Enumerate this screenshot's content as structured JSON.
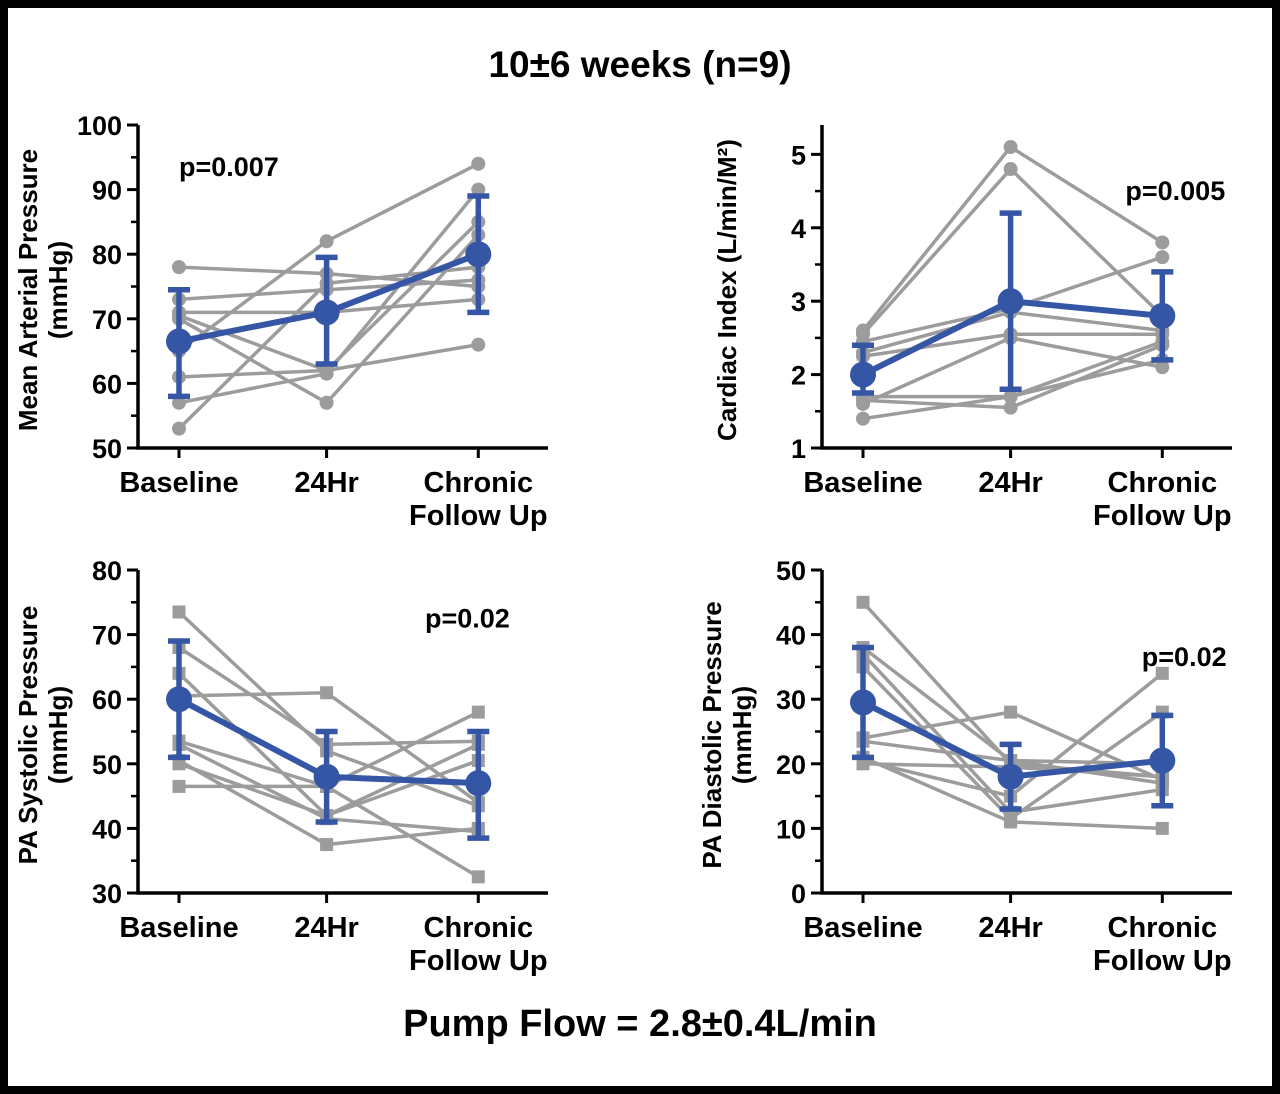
{
  "title": "10±6 weeks (n=9)",
  "caption": "Pump Flow = 2.8±0.4L/min",
  "colors": {
    "mean_line": "#3556A5",
    "individual_line": "#9C9C9C",
    "axis": "#000000",
    "text": "#000000",
    "background": "#FFFFFF"
  },
  "chart_data": [
    {
      "type": "line",
      "name": "mean-arterial-pressure",
      "ylabel_lines": [
        "Mean Arterial Pressure",
        "(mmHg)"
      ],
      "categories": [
        [
          "Baseline"
        ],
        [
          "24Hr"
        ],
        [
          "Chronic",
          "Follow Up"
        ]
      ],
      "p_label": "p=0.007",
      "p_anchor": [
        0.1,
        93.5
      ],
      "ylim": [
        50,
        100
      ],
      "yticks": [
        50,
        60,
        70,
        80,
        90,
        100
      ],
      "marker": "circle",
      "series": [
        {
          "name": "patient-1",
          "values": [
            78,
            77,
            75
          ]
        },
        {
          "name": "patient-2",
          "values": [
            73,
            74.5,
            76
          ]
        },
        {
          "name": "patient-3",
          "values": [
            71,
            71,
            73
          ]
        },
        {
          "name": "patient-4",
          "values": [
            70.5,
            62,
            85
          ]
        },
        {
          "name": "patient-5",
          "values": [
            70,
            57,
            83
          ]
        },
        {
          "name": "patient-6",
          "values": [
            65,
            82,
            94
          ]
        },
        {
          "name": "patient-7",
          "values": [
            61,
            62,
            66
          ]
        },
        {
          "name": "patient-8",
          "values": [
            57,
            61.5,
            90
          ]
        },
        {
          "name": "patient-9",
          "values": [
            53,
            75.5,
            78
          ]
        }
      ],
      "mean": {
        "values": [
          66.5,
          71,
          80
        ],
        "err_low": [
          58,
          63,
          71
        ],
        "err_high": [
          74.5,
          79.5,
          89
        ]
      }
    },
    {
      "type": "line",
      "name": "cardiac-index",
      "ylabel_lines": [
        "Cardiac Index (L/min/M²)"
      ],
      "categories": [
        [
          "Baseline"
        ],
        [
          "24Hr"
        ],
        [
          "Chronic",
          "Follow Up"
        ]
      ],
      "p_label": "p=0.005",
      "p_anchor": [
        0.74,
        4.5
      ],
      "ylim": [
        1,
        5.4
      ],
      "yticks": [
        1,
        2,
        3,
        4,
        5
      ],
      "marker": "circle",
      "series": [
        {
          "name": "patient-1",
          "values": [
            2.6,
            5.1,
            3.8
          ]
        },
        {
          "name": "patient-2",
          "values": [
            2.55,
            4.8,
            2.8
          ]
        },
        {
          "name": "patient-3",
          "values": [
            2.45,
            2.9,
            3.6
          ]
        },
        {
          "name": "patient-4",
          "values": [
            2.3,
            2.85,
            2.6
          ]
        },
        {
          "name": "patient-5",
          "values": [
            2.25,
            2.55,
            2.55
          ]
        },
        {
          "name": "patient-6",
          "values": [
            1.7,
            1.7,
            2.45
          ]
        },
        {
          "name": "patient-7",
          "values": [
            1.65,
            1.55,
            2.4
          ]
        },
        {
          "name": "patient-8",
          "values": [
            1.6,
            2.5,
            2.1
          ]
        },
        {
          "name": "patient-9",
          "values": [
            1.4,
            1.7,
            2.2
          ]
        }
      ],
      "mean": {
        "values": [
          2.0,
          3.0,
          2.8
        ],
        "err_low": [
          1.75,
          1.8,
          2.2
        ],
        "err_high": [
          2.4,
          4.2,
          3.4
        ]
      }
    },
    {
      "type": "line",
      "name": "pa-systolic-pressure",
      "ylabel_lines": [
        "PA Systolic Pressure",
        "(mmHg)"
      ],
      "categories": [
        [
          "Baseline"
        ],
        [
          "24Hr"
        ],
        [
          "Chronic",
          "Follow Up"
        ]
      ],
      "p_label": "p=0.02",
      "p_anchor": [
        0.7,
        72.5
      ],
      "ylim": [
        30,
        80
      ],
      "yticks": [
        30,
        40,
        50,
        60,
        70,
        80
      ],
      "marker": "square",
      "series": [
        {
          "name": "patient-1",
          "values": [
            73.5,
            52,
            43.5
          ]
        },
        {
          "name": "patient-2",
          "values": [
            68,
            53,
            53.5
          ]
        },
        {
          "name": "patient-3",
          "values": [
            64,
            42,
            50.5
          ]
        },
        {
          "name": "patient-4",
          "values": [
            60.5,
            61,
            44
          ]
        },
        {
          "name": "patient-5",
          "values": [
            53.5,
            46.5,
            58
          ]
        },
        {
          "name": "patient-6",
          "values": [
            53,
            41.5,
            39.5
          ]
        },
        {
          "name": "patient-7",
          "values": [
            50.5,
            37.5,
            40
          ]
        },
        {
          "name": "patient-8",
          "values": [
            50,
            42,
            53
          ]
        },
        {
          "name": "patient-9",
          "values": [
            46.5,
            46.5,
            32.5
          ]
        }
      ],
      "mean": {
        "values": [
          60,
          48,
          47
        ],
        "err_low": [
          51,
          41,
          38.5
        ],
        "err_high": [
          69,
          55,
          55
        ]
      }
    },
    {
      "type": "line",
      "name": "pa-diastolic-pressure",
      "ylabel_lines": [
        "PA Diastolic Pressure",
        "(mmHg)"
      ],
      "categories": [
        [
          "Baseline"
        ],
        [
          "24Hr"
        ],
        [
          "Chronic",
          "Follow Up"
        ]
      ],
      "p_label": "p=0.02",
      "p_anchor": [
        0.78,
        36.5
      ],
      "ylim": [
        0,
        50
      ],
      "yticks": [
        0,
        10,
        20,
        30,
        40,
        50
      ],
      "marker": "square",
      "series": [
        {
          "name": "patient-1",
          "values": [
            45,
            20,
            18
          ]
        },
        {
          "name": "patient-2",
          "values": [
            38,
            20.5,
            17
          ]
        },
        {
          "name": "patient-3",
          "values": [
            37,
            12.5,
            16
          ]
        },
        {
          "name": "patient-4",
          "values": [
            35,
            11.5,
            28
          ]
        },
        {
          "name": "patient-5",
          "values": [
            24,
            28,
            17.5
          ]
        },
        {
          "name": "patient-6",
          "values": [
            23.5,
            20.5,
            20
          ]
        },
        {
          "name": "patient-7",
          "values": [
            21,
            11,
            10
          ]
        },
        {
          "name": "patient-8",
          "values": [
            20.5,
            15,
            34
          ]
        },
        {
          "name": "patient-9",
          "values": [
            20,
            19.5,
            18
          ]
        }
      ],
      "mean": {
        "values": [
          29.5,
          18,
          20.5
        ],
        "err_low": [
          21,
          13,
          13.5
        ],
        "err_high": [
          38,
          23,
          27.5
        ]
      }
    }
  ]
}
